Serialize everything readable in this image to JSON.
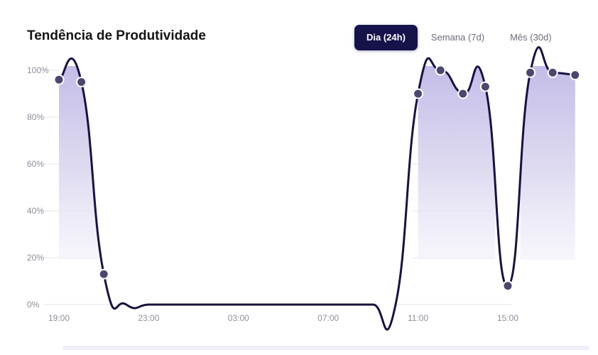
{
  "header": {
    "title": "Tendência de Produtividade"
  },
  "tabs": [
    {
      "label": "Dia (24h)",
      "active": true
    },
    {
      "label": "Semana (7d)",
      "active": false
    },
    {
      "label": "Mês (30d)",
      "active": false
    }
  ],
  "colors": {
    "line": "#17133f",
    "area": "#d9d6ee",
    "marker": "#4b4870",
    "grid": "#e6e6ee",
    "active_tab": "#16124a"
  },
  "chart_data": {
    "type": "area",
    "title": "Tendência de Produtividade",
    "xlabel": "",
    "ylabel": "",
    "ylim": [
      0,
      100
    ],
    "grid": true,
    "y_ticks": [
      "0%",
      "20%",
      "40%",
      "60%",
      "80%",
      "100%"
    ],
    "x_ticks": [
      {
        "label": "19:00",
        "x": 0
      },
      {
        "label": "23:00",
        "x": 4
      },
      {
        "label": "03:00",
        "x": 8
      },
      {
        "label": "07:00",
        "x": 12
      },
      {
        "label": "11:00",
        "x": 16
      },
      {
        "label": "15:00",
        "x": 20
      }
    ],
    "series": [
      {
        "points": [
          {
            "x": 0,
            "y": 96
          },
          {
            "x": 1,
            "y": 95
          },
          {
            "x": 2,
            "y": 13
          },
          {
            "x": 3,
            "y": 0
          },
          {
            "x": 4,
            "y": 0
          },
          {
            "x": 5,
            "y": 0
          },
          {
            "x": 6,
            "y": 0
          },
          {
            "x": 7,
            "y": 0
          },
          {
            "x": 8,
            "y": 0
          },
          {
            "x": 9,
            "y": 0
          },
          {
            "x": 10,
            "y": 0
          },
          {
            "x": 11,
            "y": 0
          },
          {
            "x": 12,
            "y": 0
          },
          {
            "x": 13,
            "y": 0
          },
          {
            "x": 14,
            "y": 0
          },
          {
            "x": 15,
            "y": 0
          },
          {
            "x": 16,
            "y": 90
          },
          {
            "x": 17,
            "y": 100
          },
          {
            "x": 18,
            "y": 90
          },
          {
            "x": 19,
            "y": 93
          },
          {
            "x": 20,
            "y": 8
          },
          {
            "x": 21,
            "y": 99
          },
          {
            "x": 22,
            "y": 99
          },
          {
            "x": 23,
            "y": 98
          }
        ],
        "markers": [
          0,
          1,
          2,
          16,
          17,
          18,
          19,
          20,
          21,
          22,
          23
        ]
      }
    ]
  }
}
